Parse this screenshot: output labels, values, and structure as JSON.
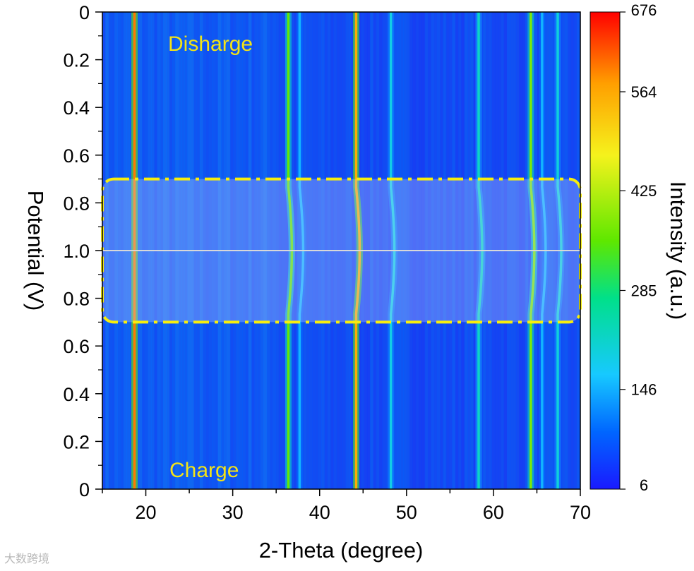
{
  "chart_data": {
    "type": "heatmap",
    "title": "",
    "xlabel": "2-Theta (degree)",
    "ylabel": "Potential (V)",
    "xlim": [
      15,
      70
    ],
    "x_ticks": [
      20,
      30,
      40,
      50,
      60,
      70
    ],
    "y_tick_labels": [
      "0",
      "0.2",
      "0.4",
      "0.6",
      "0.8",
      "1.0",
      "0.8",
      "0.6",
      "0.4",
      "0.2",
      "0"
    ],
    "colorbar": {
      "label": "Intensity (a.u.)",
      "min": 6,
      "max": 676,
      "ticks": [
        6,
        146,
        285,
        425,
        564,
        676
      ],
      "colors": [
        "#1a1aff",
        "#0066ff",
        "#17c9ff",
        "#00e08a",
        "#5ee800",
        "#f5f21c",
        "#ff9f00",
        "#ff0000"
      ]
    },
    "peaks": [
      {
        "two_theta": 18.7,
        "intensity": 600
      },
      {
        "two_theta": 36.4,
        "intensity": 360
      },
      {
        "two_theta": 37.7,
        "intensity": 150
      },
      {
        "two_theta": 44.2,
        "intensity": 560
      },
      {
        "two_theta": 48.2,
        "intensity": 190
      },
      {
        "two_theta": 58.3,
        "intensity": 220
      },
      {
        "two_theta": 64.3,
        "intensity": 380
      },
      {
        "two_theta": 65.6,
        "intensity": 150
      },
      {
        "two_theta": 67.4,
        "intensity": 200
      }
    ],
    "background_intensity": 60,
    "annotations": {
      "discharge": "Disharge",
      "charge": "Charge"
    },
    "highlight_region": {
      "potential_from": 0.7,
      "potential_to": 0.7,
      "through": 1.0,
      "style": "yellow dash-dot rounded box",
      "color": "#f7ee0e"
    },
    "reference_line_potential": 1.0
  },
  "watermark": "大数跨境"
}
